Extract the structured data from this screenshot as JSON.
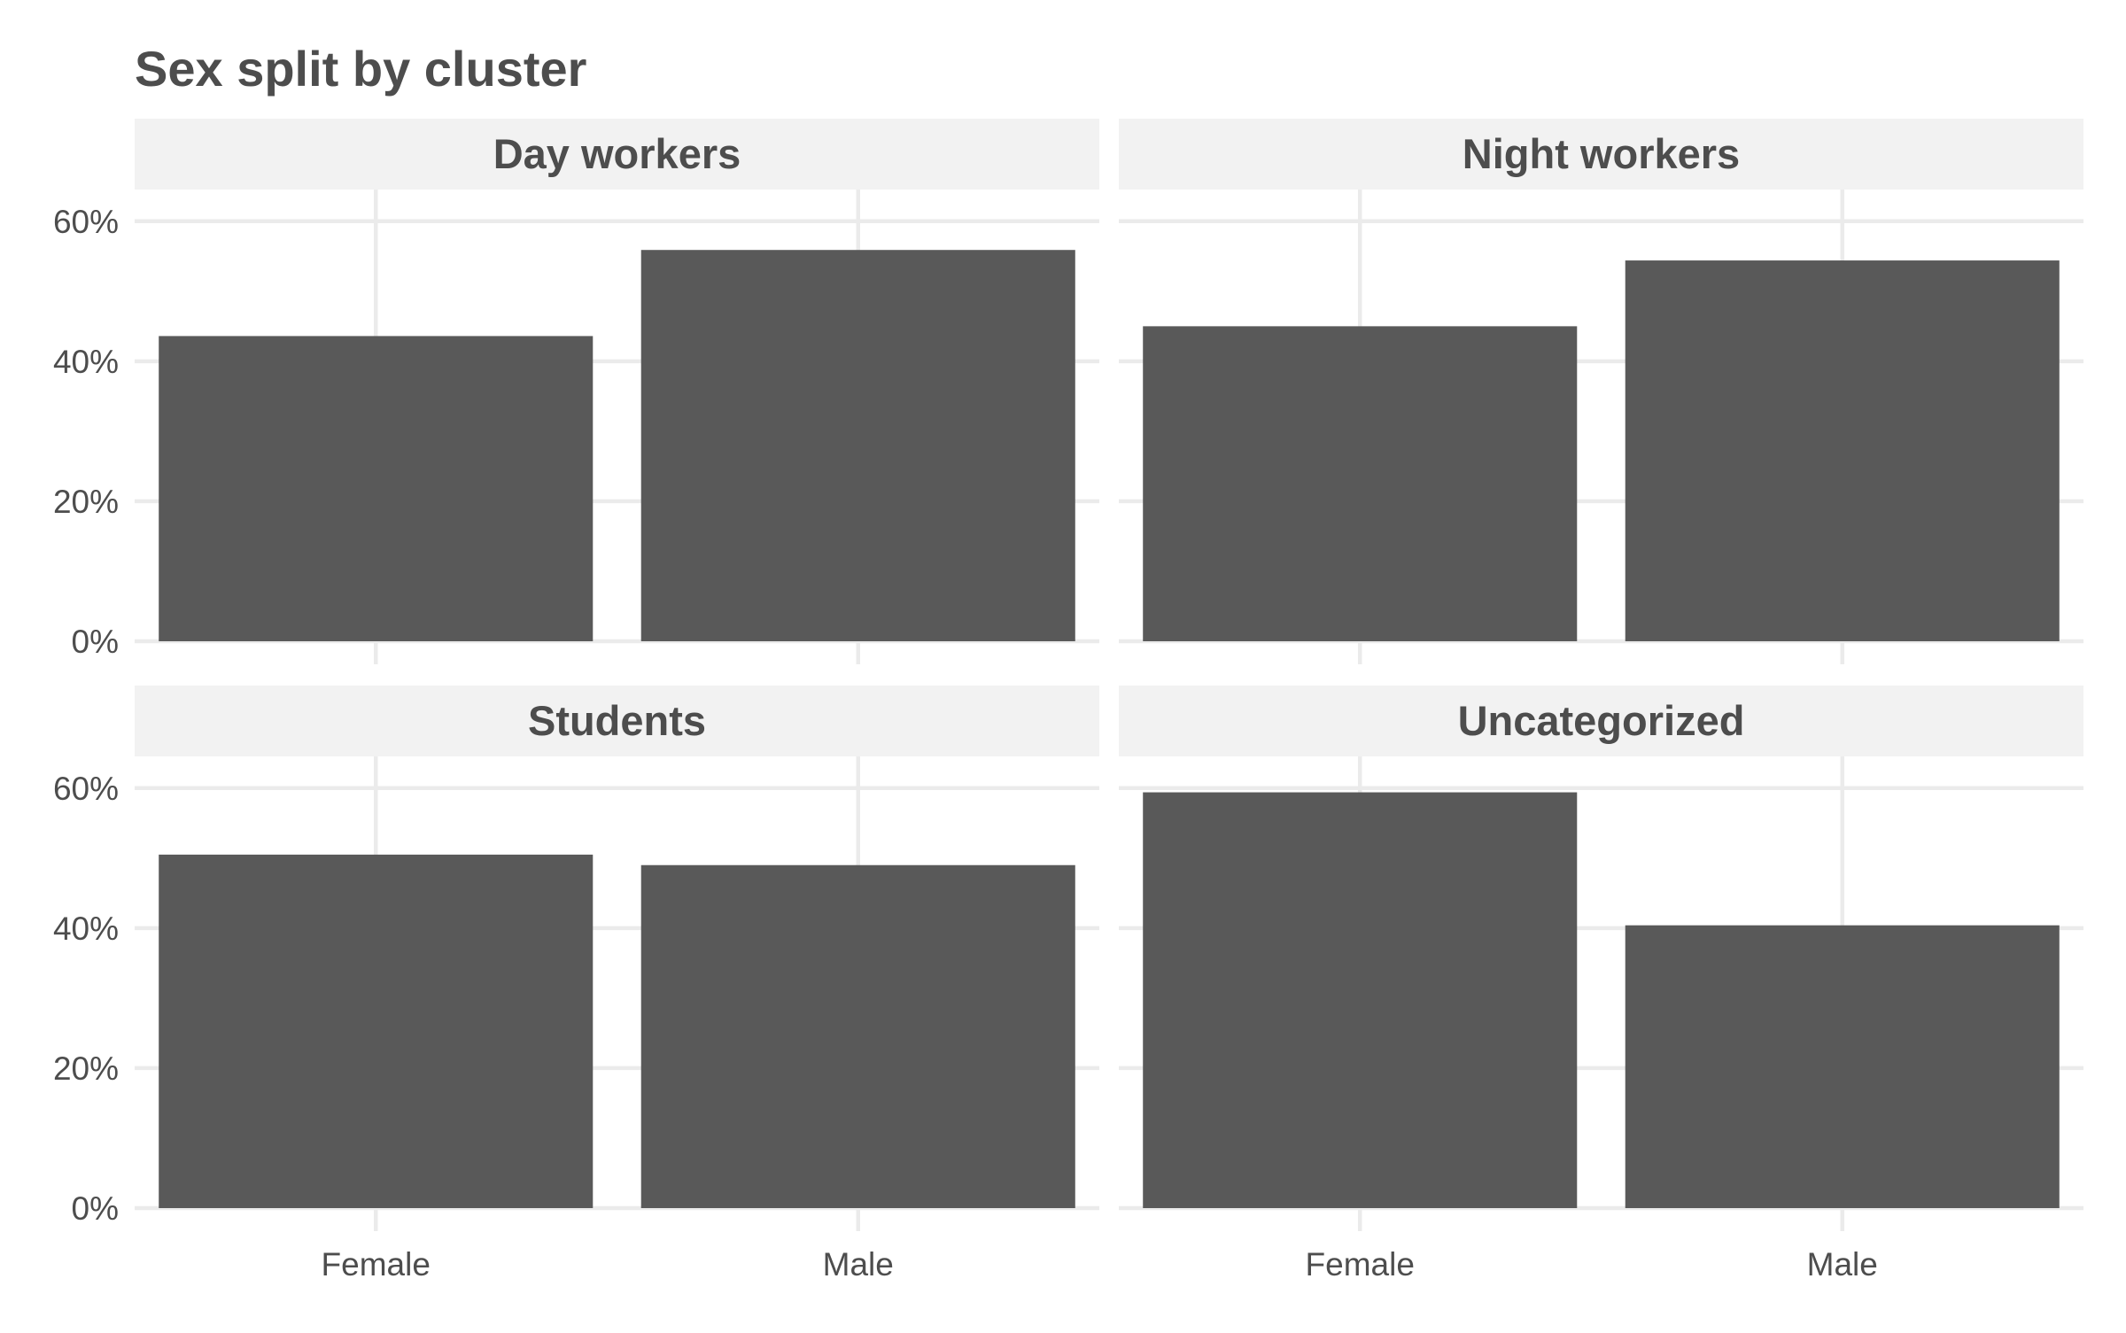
{
  "chart_data": {
    "type": "bar",
    "title": "Sex split by cluster",
    "xlabel": "",
    "ylabel": "",
    "categories": [
      "Female",
      "Male"
    ],
    "ylim": [
      0,
      0.62
    ],
    "y_ticks": [
      0,
      0.2,
      0.4,
      0.6
    ],
    "y_tick_labels": [
      "0%",
      "20%",
      "40%",
      "60%"
    ],
    "grid": true,
    "legend": "none",
    "facets": [
      {
        "name": "Day workers",
        "values": [
          0.436,
          0.559
        ]
      },
      {
        "name": "Night workers",
        "values": [
          0.45,
          0.544
        ]
      },
      {
        "name": "Students",
        "values": [
          0.505,
          0.49
        ]
      },
      {
        "name": "Uncategorized",
        "values": [
          0.594,
          0.404
        ]
      }
    ],
    "colors": {
      "bar": "#595959",
      "strip": "#f2f2f2",
      "grid": "#ebebeb",
      "text": "#4d4d4d"
    }
  }
}
